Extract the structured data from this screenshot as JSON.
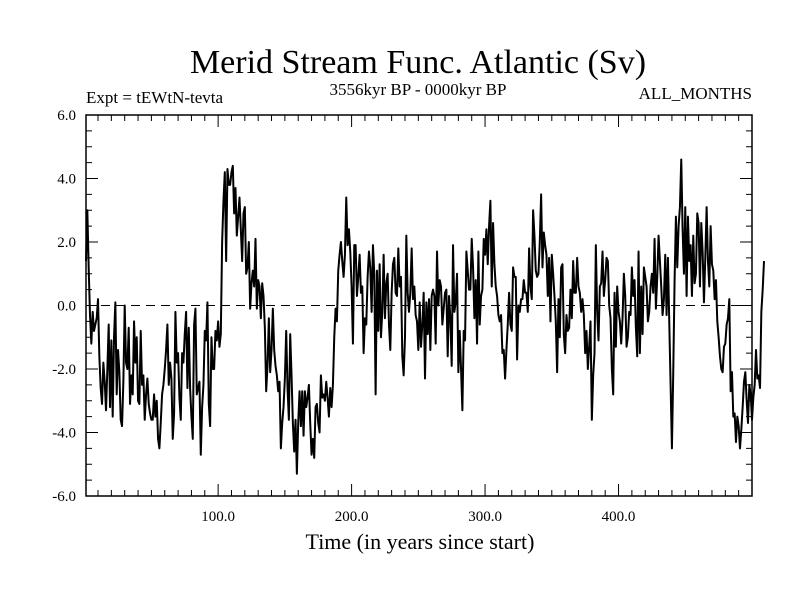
{
  "chart_data": {
    "type": "line",
    "title": "Merid Stream Func. Atlantic (Sv)",
    "expt_label": "Expt = tEWtN-tevta",
    "time_range_label": "3556kyr BP - 0000kyr BP",
    "months_label": "ALL_MONTHS",
    "xlabel": "Time (in years since start)",
    "ylabel": "",
    "xlim": [
      1,
      500
    ],
    "ylim": [
      -6,
      6
    ],
    "x_ticks": [
      100,
      200,
      300,
      400
    ],
    "x_tick_labels": [
      "100.0",
      "200.0",
      "300.0",
      "400.0"
    ],
    "y_ticks": [
      -6,
      -4,
      -2,
      0,
      2,
      4,
      6
    ],
    "y_tick_labels": [
      "-6.0",
      "-4.0",
      "-2.0",
      "0.0",
      "2.0",
      "4.0",
      "6.0"
    ],
    "reference_line": {
      "y": 0,
      "style": "dashed"
    },
    "series": [
      {
        "name": "Merid Stream Func. Atlantic",
        "x_start": 1,
        "x_step": 1,
        "values": [
          1.4,
          3.0,
          1.2,
          -0.3,
          -1.2,
          -0.2,
          -0.8,
          -0.6,
          -0.4,
          0.2,
          -1.6,
          -2.6,
          -3.1,
          -1.8,
          -2.4,
          -3.3,
          -2.0,
          -0.6,
          -3.2,
          -1.1,
          -3.5,
          -1.0,
          0.1,
          -2.8,
          -1.4,
          -2.1,
          -3.6,
          -3.8,
          -2.4,
          0.0,
          -1.8,
          -2.0,
          -0.7,
          -3.1,
          -2.2,
          -2.8,
          -0.5,
          -1.8,
          -1.0,
          -3.0,
          -3.1,
          -0.8,
          -2.5,
          -2.2,
          -3.6,
          -2.8,
          -2.3,
          -3.1,
          -3.4,
          -3.6,
          -3.6,
          -2.8,
          -3.5,
          -3.0,
          -4.2,
          -4.5,
          -3.7,
          -2.8,
          -2.5,
          -2.0,
          -1.4,
          -0.6,
          -2.5,
          -1.8,
          -2.3,
          -4.2,
          -3.4,
          -0.2,
          -1.8,
          -1.5,
          -2.9,
          -3.6,
          -1.5,
          -1.8,
          -0.9,
          -0.2,
          -2.6,
          -0.7,
          -2.6,
          -3.5,
          -4.2,
          -0.6,
          -0.1,
          -2.8,
          -2.6,
          -2.4,
          -4.7,
          -3.2,
          -2.5,
          -0.8,
          -1.1,
          0.1,
          -3.1,
          -3.8,
          -1.0,
          -2.0,
          -2.0,
          -0.8,
          -1.1,
          -0.5,
          -1.3,
          -0.9,
          2.0,
          3.3,
          4.2,
          1.4,
          4.3,
          3.8,
          3.8,
          4.2,
          4.4,
          2.9,
          3.7,
          2.2,
          2.8,
          3.4,
          2.4,
          1.4,
          2.9,
          3.1,
          1.0,
          1.2,
          2.0,
          -0.1,
          0.7,
          1.1,
          0.6,
          2.1,
          -0.1,
          0.8,
          0.6,
          -0.4,
          0.7,
          0.3,
          -0.7,
          -2.7,
          -1.9,
          -0.4,
          -2.1,
          -1.4,
          -0.1,
          -1.4,
          -1.9,
          -2.2,
          -2.7,
          -2.4,
          -4.5,
          -3.7,
          -3.2,
          -2.3,
          -0.8,
          -2.6,
          -3.6,
          -0.9,
          -2.2,
          -3.7,
          -4.6,
          -3.6,
          -5.3,
          -3.7,
          -2.7,
          -3.8,
          -2.7,
          -4.1,
          -2.7,
          -3.2,
          -2.9,
          -2.5,
          -3.7,
          -4.7,
          -4.2,
          -4.8,
          -3.2,
          -3.1,
          -3.7,
          -4.0,
          -2.2,
          -2.9,
          -2.8,
          -3.0,
          -2.4,
          -2.9,
          -3.5,
          -2.6,
          -3.2,
          -2.5,
          -1.0,
          -0.1,
          -0.5,
          1.1,
          1.6,
          2.0,
          1.4,
          0.9,
          1.6,
          3.4,
          1.9,
          2.4,
          1.7,
          0.6,
          -1.2,
          1.9,
          1.9,
          0.3,
          0.9,
          1.6,
          0.4,
          0.6,
          -1.5,
          -0.4,
          -0.6,
          0.9,
          1.7,
          1.2,
          -0.2,
          1.9,
          1.0,
          -2.8,
          1.1,
          -0.8,
          1.3,
          -1.0,
          -0.2,
          1.6,
          -0.4,
          0.7,
          1.0,
          -0.6,
          -1.4,
          0.4,
          1.3,
          1.5,
          0.4,
          0.3,
          1.8,
          0.6,
          0.9,
          -1.6,
          -2.2,
          -1.0,
          2.2,
          0.4,
          -0.2,
          0.4,
          1.8,
          0.2,
          0.6,
          -0.3,
          -0.5,
          -1.4,
          0.1,
          -1.3,
          -0.6,
          0.4,
          -2.3,
          0.1,
          -0.9,
          0.2,
          -1.4,
          0.3,
          0.5,
          0.3,
          -1.2,
          1.7,
          0.0,
          0.8,
          0.6,
          -0.6,
          -0.1,
          0.4,
          0.5,
          -1.6,
          0.3,
          -0.4,
          -1.9,
          1.9,
          -0.2,
          0.1,
          1.0,
          -2.1,
          -0.8,
          -2.0,
          -3.3,
          -0.8,
          -1.1,
          1.7,
          1.1,
          0.5,
          0.5,
          2.1,
          1.2,
          -0.4,
          0.8,
          -1.2,
          1.7,
          -0.6,
          0.3,
          0.5,
          2.1,
          1.6,
          2.4,
          1.3,
          2.5,
          3.3,
          0.6,
          2.6,
          1.3,
          0.6,
          0.3,
          -0.3,
          -0.5,
          -0.3,
          -1.5,
          -1.4,
          -2.3,
          -1.4,
          -0.6,
          0.4,
          -0.6,
          -0.8,
          1.2,
          0.9,
          0.9,
          -1.7,
          0.0,
          -0.2,
          0.2,
          0.2,
          0.8,
          0.4,
          0.4,
          -0.2,
          1.8,
          0.6,
          0.2,
          3.0,
          2.2,
          1.1,
          0.9,
          1.0,
          2.0,
          3.5,
          1.2,
          2.3,
          1.9,
          1.6,
          0.3,
          1.5,
          -0.5,
          1.6,
          1.0,
          0.3,
          -0.5,
          -2.1,
          0.2,
          -1.0,
          1.2,
          1.3,
          -0.9,
          -1.5,
          -0.3,
          -0.8,
          -0.7,
          0.5,
          -0.4,
          1.4,
          0.4,
          0.4,
          1.5,
          0.6,
          0.4,
          -0.2,
          0.2,
          -0.3,
          -1.5,
          -0.8,
          -2.0,
          -1.3,
          -0.5,
          -3.6,
          -2.2,
          -1.5,
          1.9,
          -0.2,
          -1.1,
          0.6,
          0.7,
          1.7,
          0.3,
          0.8,
          1.5,
          1.4,
          0.0,
          -0.4,
          -2.0,
          -2.8,
          0.4,
          -1.3,
          0.6,
          -0.2,
          -0.5,
          -1.2,
          -0.4,
          1.0,
          0.3,
          -1.3,
          -1.0,
          -0.2,
          -0.3,
          1.2,
          0.3,
          0.8,
          -0.7,
          -1.6,
          1.7,
          -1.5,
          0.6,
          -0.9,
          1.2,
          0.9,
          0.6,
          -0.5,
          -0.2,
          0.6,
          1.0,
          0.4,
          2.1,
          -0.1,
          0.9,
          2.2,
          1.4,
          0.6,
          -0.3,
          0.2,
          1.6,
          -0.3,
          1.5,
          -0.5,
          -2.5,
          -4.5,
          -2.1,
          0.8,
          2.8,
          1.2,
          2.5,
          3.1,
          4.6,
          2.4,
          1.0,
          3.1,
          0.3,
          2.8,
          1.4,
          1.9,
          0.3,
          2.2,
          0.7,
          1.0,
          2.9,
          2.6,
          0.6,
          2.6,
          1.7,
          0.1,
          1.5,
          3.1,
          1.4,
          0.6,
          2.5,
          1.3,
          1.1,
          0.2,
          0.8,
          -0.5,
          -1.0,
          -1.6,
          -2.0,
          -2.1,
          -1.3,
          -1.2,
          -0.6,
          -0.4,
          0.2,
          -2.7,
          -2.1,
          -3.5,
          -3.4,
          -4.3,
          -3.5,
          -3.8,
          -4.5,
          -3.9,
          -3.2,
          -2.4,
          -2.1,
          -3.0,
          -3.7,
          -2.5,
          -2.8,
          -3.6,
          -2.9,
          -2.5,
          -1.4,
          -2.3,
          -2.2,
          -2.6,
          -0.2,
          0.5,
          1.4
        ]
      }
    ]
  }
}
